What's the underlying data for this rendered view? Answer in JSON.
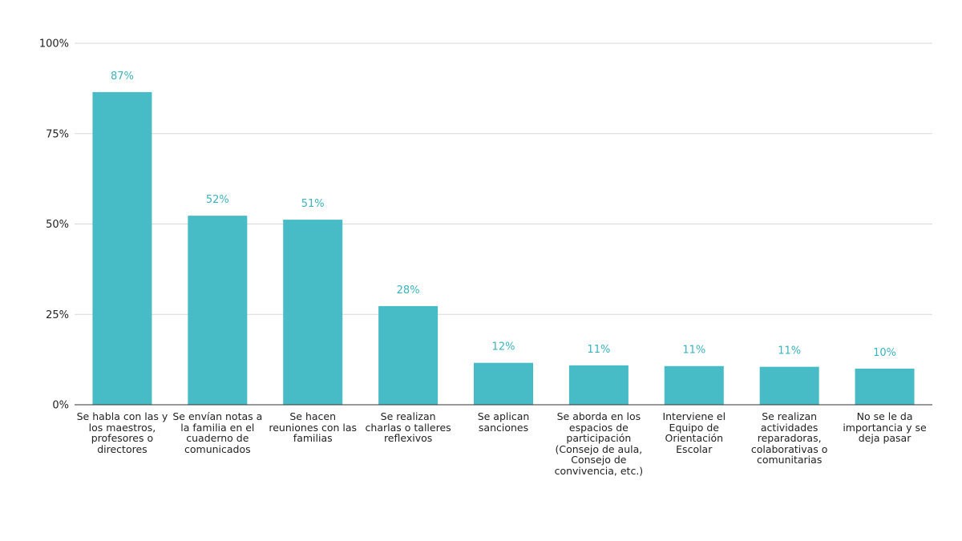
{
  "chart_data": {
    "type": "bar",
    "title": "",
    "xlabel": "",
    "ylabel": "",
    "ylim": [
      0,
      100
    ],
    "y_ticks": [
      0,
      25,
      50,
      75,
      100
    ],
    "y_tick_labels": [
      "0%",
      "25%",
      "50%",
      "75%",
      "100%"
    ],
    "grid": true,
    "bar_color": "#47bcc7",
    "label_color": "#3bb3bd",
    "categories": [
      "Se habla con las y los maestros, profesores o directores",
      "Se envían notas a la familia en el cuaderno de comunicados",
      "Se hacen reuniones con las familias",
      "Se realizan charlas o talleres reflexivos",
      "Se aplican sanciones",
      "Se aborda en los espacios de participación (Consejo de aula, Consejo de convivencia, etc.)",
      "Interviene el Equipo de Orientación Escolar",
      "Se realizan actividades reparadoras, colaborativas o comunitarias",
      "No se le da importancia y se deja pasar"
    ],
    "values": [
      87,
      52,
      51,
      28,
      12,
      11,
      11,
      11,
      10
    ],
    "value_labels": [
      "87%",
      "52%",
      "51%",
      "28%",
      "12%",
      "11%",
      "11%",
      "11%",
      "10%"
    ],
    "actual_heights": [
      86.5,
      52.3,
      51.2,
      27.3,
      11.6,
      10.9,
      10.7,
      10.5,
      10.0
    ]
  }
}
